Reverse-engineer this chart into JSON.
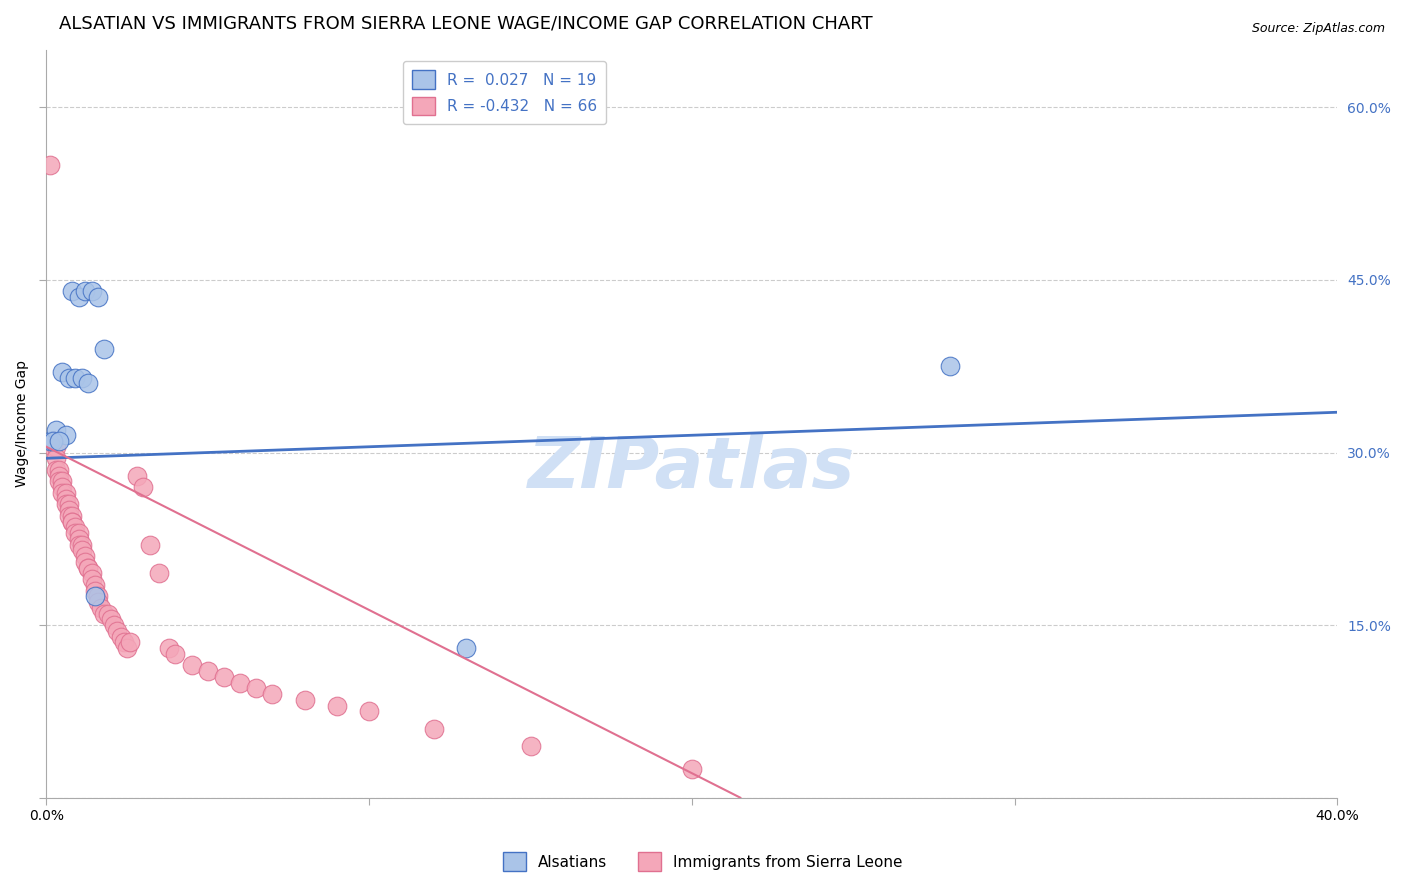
{
  "title": "ALSATIAN VS IMMIGRANTS FROM SIERRA LEONE WAGE/INCOME GAP CORRELATION CHART",
  "source": "Source: ZipAtlas.com",
  "ylabel": "Wage/Income Gap",
  "xlim": [
    0.0,
    0.4
  ],
  "ylim": [
    0.0,
    0.65
  ],
  "yticks": [
    0.0,
    0.15,
    0.3,
    0.45,
    0.6
  ],
  "ytick_labels": [
    "",
    "15.0%",
    "30.0%",
    "45.0%",
    "60.0%"
  ],
  "legend_blue_label": "R =  0.027   N = 19",
  "legend_pink_label": "R = -0.432   N = 66",
  "blue_color": "#aac4e8",
  "pink_color": "#f4a7b9",
  "blue_line_color": "#4472c4",
  "pink_line_color": "#e07090",
  "watermark": "ZIPatlas",
  "watermark_color": "#d0e0f5",
  "background_color": "#ffffff",
  "grid_color": "#cccccc",
  "title_fontsize": 13,
  "axis_label_fontsize": 10,
  "tick_fontsize": 10,
  "legend_fontsize": 11,
  "source_fontsize": 9,
  "blue_scatter_x": [
    0.001,
    0.008,
    0.01,
    0.012,
    0.014,
    0.016,
    0.018,
    0.005,
    0.007,
    0.009,
    0.003,
    0.006,
    0.011,
    0.013,
    0.015,
    0.002,
    0.004,
    0.28,
    0.13
  ],
  "blue_scatter_y": [
    0.31,
    0.44,
    0.435,
    0.44,
    0.44,
    0.435,
    0.39,
    0.37,
    0.365,
    0.365,
    0.32,
    0.315,
    0.365,
    0.36,
    0.175,
    0.31,
    0.31,
    0.375,
    0.13
  ],
  "pink_scatter_x": [
    0.001,
    0.002,
    0.002,
    0.003,
    0.003,
    0.003,
    0.004,
    0.004,
    0.004,
    0.005,
    0.005,
    0.005,
    0.006,
    0.006,
    0.006,
    0.007,
    0.007,
    0.007,
    0.008,
    0.008,
    0.008,
    0.009,
    0.009,
    0.01,
    0.01,
    0.01,
    0.011,
    0.011,
    0.012,
    0.012,
    0.013,
    0.013,
    0.014,
    0.014,
    0.015,
    0.015,
    0.016,
    0.016,
    0.017,
    0.018,
    0.019,
    0.02,
    0.021,
    0.022,
    0.023,
    0.024,
    0.025,
    0.026,
    0.028,
    0.03,
    0.032,
    0.035,
    0.038,
    0.04,
    0.045,
    0.05,
    0.055,
    0.06,
    0.065,
    0.07,
    0.08,
    0.09,
    0.1,
    0.12,
    0.15,
    0.2
  ],
  "pink_scatter_y": [
    0.55,
    0.31,
    0.305,
    0.305,
    0.295,
    0.285,
    0.285,
    0.28,
    0.275,
    0.275,
    0.27,
    0.265,
    0.265,
    0.26,
    0.255,
    0.255,
    0.25,
    0.245,
    0.245,
    0.24,
    0.24,
    0.235,
    0.23,
    0.23,
    0.225,
    0.22,
    0.22,
    0.215,
    0.21,
    0.205,
    0.2,
    0.2,
    0.195,
    0.19,
    0.185,
    0.18,
    0.175,
    0.17,
    0.165,
    0.16,
    0.16,
    0.155,
    0.15,
    0.145,
    0.14,
    0.135,
    0.13,
    0.135,
    0.28,
    0.27,
    0.22,
    0.195,
    0.13,
    0.125,
    0.115,
    0.11,
    0.105,
    0.1,
    0.095,
    0.09,
    0.085,
    0.08,
    0.075,
    0.06,
    0.045,
    0.025
  ],
  "blue_trend_x": [
    0.0,
    0.4
  ],
  "blue_trend_y": [
    0.295,
    0.335
  ],
  "pink_trend_x": [
    0.0,
    0.215
  ],
  "pink_trend_y": [
    0.305,
    0.0
  ]
}
